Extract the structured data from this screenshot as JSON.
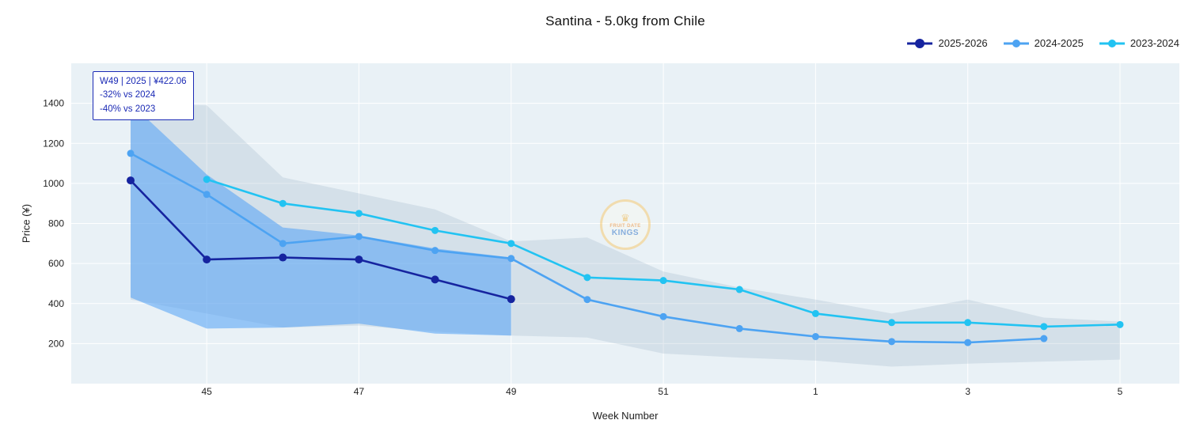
{
  "title": "Santina - 5.0kg from Chile",
  "legend": [
    {
      "label": "2025-2026",
      "color": "#16249f"
    },
    {
      "label": "2024-2025",
      "color": "#4da3f2"
    },
    {
      "label": "2023-2024",
      "color": "#22c3f2"
    }
  ],
  "annotation": {
    "line1": "W49 | 2025 | ¥422.06",
    "line2": "-32% vs 2024",
    "line3": "-40% vs 2023"
  },
  "watermark": {
    "line1": "FRUIT DATE",
    "line2": "KINGS"
  },
  "chart_data": {
    "type": "line",
    "title": "Santina - 5.0kg from Chile",
    "xlabel": "Week Number",
    "ylabel": "Price (¥)",
    "plot_bg": "#e9f1f6",
    "grid_color": "#ffffff",
    "legend_position": "top-right",
    "categories": [
      "44",
      "45",
      "46",
      "47",
      "48",
      "49",
      "50",
      "51",
      "52",
      "1",
      "2",
      "3",
      "4",
      "5"
    ],
    "xticks": [
      "45",
      "47",
      "49",
      "51",
      "1",
      "3",
      "5"
    ],
    "yticks": [
      200,
      400,
      600,
      800,
      1000,
      1200,
      1400
    ],
    "ylim": [
      0,
      1600
    ],
    "series": [
      {
        "name": "2025-2026",
        "color": "#16249f",
        "marker_r": 5,
        "values": [
          1015,
          620,
          630,
          620,
          520,
          422.06,
          null,
          null,
          null,
          null,
          null,
          null,
          null,
          null
        ]
      },
      {
        "name": "2024-2025",
        "color": "#4da3f2",
        "marker_r": 4.5,
        "values": [
          1150,
          945,
          700,
          735,
          665,
          625,
          420,
          335,
          275,
          235,
          210,
          205,
          225,
          null
        ]
      },
      {
        "name": "2023-2024",
        "color": "#22c3f2",
        "marker_r": 4.5,
        "values": [
          null,
          1020,
          900,
          850,
          765,
          700,
          530,
          515,
          470,
          350,
          305,
          305,
          285,
          295
        ]
      }
    ],
    "bands": [
      {
        "name": "2023-2024-range",
        "color": "rgba(150,175,195,0.25)",
        "start": 0,
        "upper": [
          1400,
          1390,
          1030,
          950,
          870,
          710,
          730,
          560,
          480,
          420,
          350,
          420,
          330,
          310
        ],
        "lower": [
          420,
          350,
          280,
          290,
          260,
          240,
          230,
          150,
          130,
          115,
          85,
          100,
          110,
          120
        ]
      },
      {
        "name": "2024-2025-range",
        "color": "rgba(80,160,245,0.55)",
        "start": 0,
        "upper": [
          1400,
          1045,
          780,
          740,
          675,
          630
        ],
        "lower": [
          430,
          275,
          280,
          300,
          250,
          240
        ]
      }
    ]
  }
}
